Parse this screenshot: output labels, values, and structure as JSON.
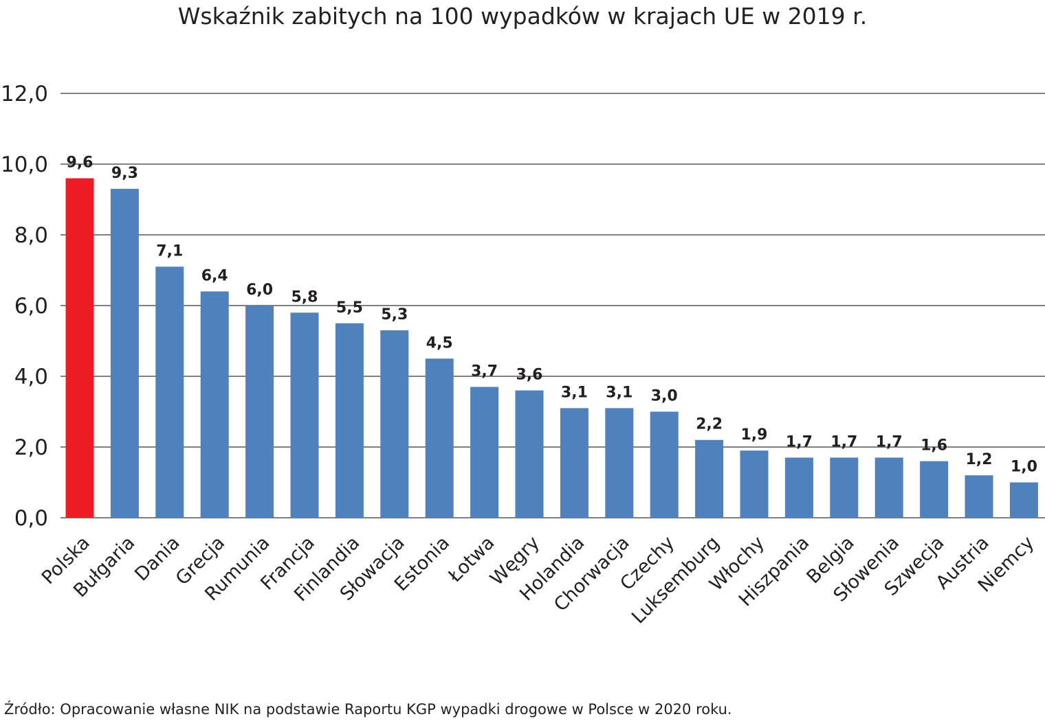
{
  "chart_data": {
    "type": "bar",
    "title": "Wskaźnik zabitych na 100 wypadków w krajach UE w 2019 r.",
    "xlabel": "",
    "ylabel": "",
    "categories": [
      "Polska",
      "Bułgaria",
      "Dania",
      "Grecja",
      "Rumunia",
      "Francja",
      "Finlandia",
      "Słowacja",
      "Estonia",
      "Łotwa",
      "Węgry",
      "Holandia",
      "Chorwacja",
      "Czechy",
      "Luksemburg",
      "Włochy",
      "Hiszpania",
      "Belgia",
      "Słowenia",
      "Szwecja",
      "Austria",
      "Niemcy"
    ],
    "values": [
      9.6,
      9.3,
      7.1,
      6.4,
      6.0,
      5.8,
      5.5,
      5.3,
      4.5,
      3.7,
      3.6,
      3.1,
      3.1,
      3.0,
      2.2,
      1.9,
      1.7,
      1.7,
      1.7,
      1.6,
      1.2,
      1.0
    ],
    "data_labels": [
      "9,6",
      "9,3",
      "7,1",
      "6,4",
      "6,0",
      "5,8",
      "5,5",
      "5,3",
      "4,5",
      "3,7",
      "3,6",
      "3,1",
      "3,1",
      "3,0",
      "2,2",
      "1,9",
      "1,7",
      "1,7",
      "1,7",
      "1,6",
      "1,2",
      "1,0"
    ],
    "ylim": [
      0,
      12
    ],
    "yticks": [
      0,
      2,
      4,
      6,
      8,
      10,
      12
    ],
    "ytick_labels": [
      "0,0",
      "2,0",
      "4,0",
      "6,0",
      "8,0",
      "10,0",
      "12,0"
    ],
    "grid": true,
    "legend": "none",
    "colors": {
      "default_bar": "#4f81bd",
      "highlight_bar": "#ed1c24",
      "gridline": "#808080",
      "text": "#231f20"
    },
    "highlight_index": 0
  },
  "source_note": "Źródło: Opracowanie własne NIK na podstawie Raportu KGP wypadki drogowe w Polsce w 2020 roku."
}
